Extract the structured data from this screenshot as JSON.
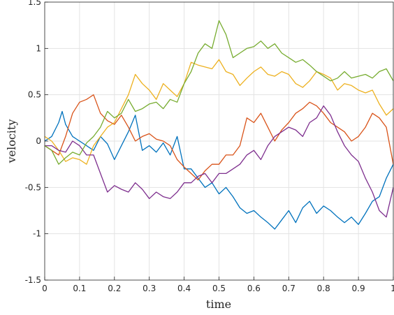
{
  "chart_data": {
    "type": "line",
    "title": "",
    "xlabel": "time",
    "ylabel": "velocity",
    "xlim": [
      0,
      1
    ],
    "ylim": [
      -1.5,
      1.5
    ],
    "grid": true,
    "legend": "none",
    "xticks": [
      0,
      0.1,
      0.2,
      0.3,
      0.4,
      0.5,
      0.6,
      0.7,
      0.8,
      0.9,
      1
    ],
    "xtick_labels": [
      "0",
      "0.1",
      "0.2",
      "0.3",
      "0.4",
      "0.5",
      "0.6",
      "0.7",
      "0.8",
      "0.9",
      "1"
    ],
    "yticks": [
      -1.5,
      -1,
      -0.5,
      0,
      0.5,
      1,
      1.5
    ],
    "ytick_labels": [
      "-1.5",
      "-1",
      "-0.5",
      "0",
      "0.5",
      "1",
      "1.5"
    ],
    "series": [
      {
        "color": "#0072BD",
        "x": [
          0,
          0.02,
          0.04,
          0.05,
          0.06,
          0.08,
          0.1,
          0.12,
          0.14,
          0.16,
          0.18,
          0.2,
          0.22,
          0.24,
          0.26,
          0.28,
          0.3,
          0.32,
          0.34,
          0.36,
          0.38,
          0.4,
          0.42,
          0.44,
          0.46,
          0.48,
          0.5,
          0.52,
          0.54,
          0.56,
          0.58,
          0.6,
          0.62,
          0.64,
          0.66,
          0.68,
          0.7,
          0.72,
          0.74,
          0.76,
          0.78,
          0.8,
          0.82,
          0.84,
          0.86,
          0.88,
          0.9,
          0.92,
          0.94,
          0.96,
          0.98,
          1.0
        ],
        "y": [
          0.0,
          0.05,
          0.2,
          0.32,
          0.18,
          0.05,
          0.0,
          -0.05,
          -0.1,
          0.05,
          -0.03,
          -0.2,
          -0.05,
          0.1,
          0.28,
          -0.1,
          -0.05,
          -0.12,
          -0.02,
          -0.15,
          0.05,
          -0.3,
          -0.3,
          -0.4,
          -0.5,
          -0.45,
          -0.57,
          -0.5,
          -0.6,
          -0.72,
          -0.78,
          -0.75,
          -0.82,
          -0.88,
          -0.95,
          -0.85,
          -0.75,
          -0.88,
          -0.72,
          -0.65,
          -0.78,
          -0.7,
          -0.75,
          -0.82,
          -0.88,
          -0.82,
          -0.9,
          -0.78,
          -0.65,
          -0.6,
          -0.4,
          -0.25
        ]
      },
      {
        "color": "#D95319",
        "x": [
          0,
          0.02,
          0.04,
          0.06,
          0.08,
          0.1,
          0.12,
          0.14,
          0.16,
          0.18,
          0.2,
          0.22,
          0.24,
          0.26,
          0.28,
          0.3,
          0.32,
          0.34,
          0.36,
          0.38,
          0.4,
          0.42,
          0.44,
          0.46,
          0.48,
          0.5,
          0.52,
          0.54,
          0.56,
          0.58,
          0.6,
          0.62,
          0.64,
          0.66,
          0.68,
          0.7,
          0.72,
          0.74,
          0.76,
          0.78,
          0.8,
          0.82,
          0.84,
          0.86,
          0.88,
          0.9,
          0.92,
          0.94,
          0.96,
          0.98,
          1.0
        ],
        "y": [
          -0.05,
          -0.1,
          -0.15,
          0.05,
          0.3,
          0.42,
          0.45,
          0.5,
          0.3,
          0.22,
          0.18,
          0.28,
          0.15,
          0.0,
          0.05,
          0.08,
          0.02,
          0.0,
          -0.05,
          -0.2,
          -0.28,
          -0.35,
          -0.42,
          -0.32,
          -0.25,
          -0.25,
          -0.15,
          -0.15,
          -0.05,
          0.25,
          0.2,
          0.3,
          0.15,
          0.0,
          0.12,
          0.2,
          0.3,
          0.35,
          0.42,
          0.38,
          0.3,
          0.2,
          0.15,
          0.1,
          0.0,
          0.05,
          0.15,
          0.3,
          0.25,
          0.15,
          -0.25
        ]
      },
      {
        "color": "#EDB120",
        "x": [
          0,
          0.02,
          0.04,
          0.06,
          0.08,
          0.1,
          0.12,
          0.14,
          0.16,
          0.18,
          0.2,
          0.22,
          0.24,
          0.26,
          0.28,
          0.3,
          0.32,
          0.34,
          0.36,
          0.38,
          0.4,
          0.42,
          0.44,
          0.46,
          0.48,
          0.5,
          0.52,
          0.54,
          0.56,
          0.58,
          0.6,
          0.62,
          0.64,
          0.66,
          0.68,
          0.7,
          0.72,
          0.74,
          0.76,
          0.78,
          0.8,
          0.82,
          0.84,
          0.86,
          0.88,
          0.9,
          0.92,
          0.94,
          0.96,
          0.98,
          1.0
        ],
        "y": [
          0.05,
          0.0,
          -0.1,
          -0.22,
          -0.18,
          -0.2,
          -0.25,
          -0.05,
          0.05,
          0.15,
          0.2,
          0.35,
          0.5,
          0.72,
          0.62,
          0.55,
          0.45,
          0.62,
          0.55,
          0.48,
          0.62,
          0.85,
          0.82,
          0.8,
          0.78,
          0.88,
          0.75,
          0.72,
          0.6,
          0.68,
          0.75,
          0.8,
          0.72,
          0.7,
          0.75,
          0.72,
          0.62,
          0.58,
          0.65,
          0.75,
          0.72,
          0.68,
          0.55,
          0.62,
          0.6,
          0.55,
          0.52,
          0.55,
          0.4,
          0.28,
          0.35
        ]
      },
      {
        "color": "#7E2F8E",
        "x": [
          0,
          0.02,
          0.04,
          0.06,
          0.08,
          0.1,
          0.12,
          0.14,
          0.16,
          0.18,
          0.2,
          0.22,
          0.24,
          0.26,
          0.28,
          0.3,
          0.32,
          0.34,
          0.36,
          0.38,
          0.4,
          0.42,
          0.44,
          0.46,
          0.48,
          0.5,
          0.52,
          0.54,
          0.56,
          0.58,
          0.6,
          0.62,
          0.64,
          0.66,
          0.68,
          0.7,
          0.72,
          0.74,
          0.76,
          0.78,
          0.8,
          0.82,
          0.84,
          0.86,
          0.88,
          0.9,
          0.92,
          0.94,
          0.96,
          0.98,
          1.0
        ],
        "y": [
          -0.05,
          -0.05,
          -0.1,
          -0.12,
          0.0,
          -0.05,
          -0.15,
          -0.15,
          -0.35,
          -0.55,
          -0.48,
          -0.52,
          -0.55,
          -0.45,
          -0.52,
          -0.62,
          -0.55,
          -0.6,
          -0.62,
          -0.55,
          -0.45,
          -0.45,
          -0.38,
          -0.35,
          -0.45,
          -0.35,
          -0.35,
          -0.3,
          -0.25,
          -0.15,
          -0.1,
          -0.2,
          -0.05,
          0.05,
          0.1,
          0.15,
          0.12,
          0.05,
          0.2,
          0.25,
          0.38,
          0.28,
          0.1,
          -0.05,
          -0.15,
          -0.22,
          -0.4,
          -0.55,
          -0.75,
          -0.82,
          -0.5
        ]
      },
      {
        "color": "#77AC30",
        "x": [
          0,
          0.02,
          0.04,
          0.06,
          0.08,
          0.1,
          0.12,
          0.14,
          0.16,
          0.18,
          0.2,
          0.22,
          0.24,
          0.26,
          0.28,
          0.3,
          0.32,
          0.34,
          0.36,
          0.38,
          0.4,
          0.42,
          0.44,
          0.46,
          0.48,
          0.5,
          0.52,
          0.54,
          0.56,
          0.58,
          0.6,
          0.62,
          0.64,
          0.66,
          0.68,
          0.7,
          0.72,
          0.74,
          0.76,
          0.78,
          0.8,
          0.82,
          0.84,
          0.86,
          0.88,
          0.9,
          0.92,
          0.94,
          0.96,
          0.98,
          1.0
        ],
        "y": [
          -0.05,
          -0.1,
          -0.25,
          -0.18,
          -0.12,
          -0.15,
          -0.02,
          0.05,
          0.15,
          0.32,
          0.25,
          0.3,
          0.45,
          0.32,
          0.35,
          0.4,
          0.42,
          0.35,
          0.45,
          0.42,
          0.62,
          0.75,
          0.95,
          1.05,
          1.0,
          1.3,
          1.15,
          0.9,
          0.95,
          1.0,
          1.02,
          1.08,
          1.0,
          1.05,
          0.95,
          0.9,
          0.85,
          0.88,
          0.82,
          0.75,
          0.7,
          0.65,
          0.68,
          0.75,
          0.68,
          0.7,
          0.72,
          0.68,
          0.75,
          0.78,
          0.65
        ]
      }
    ]
  }
}
